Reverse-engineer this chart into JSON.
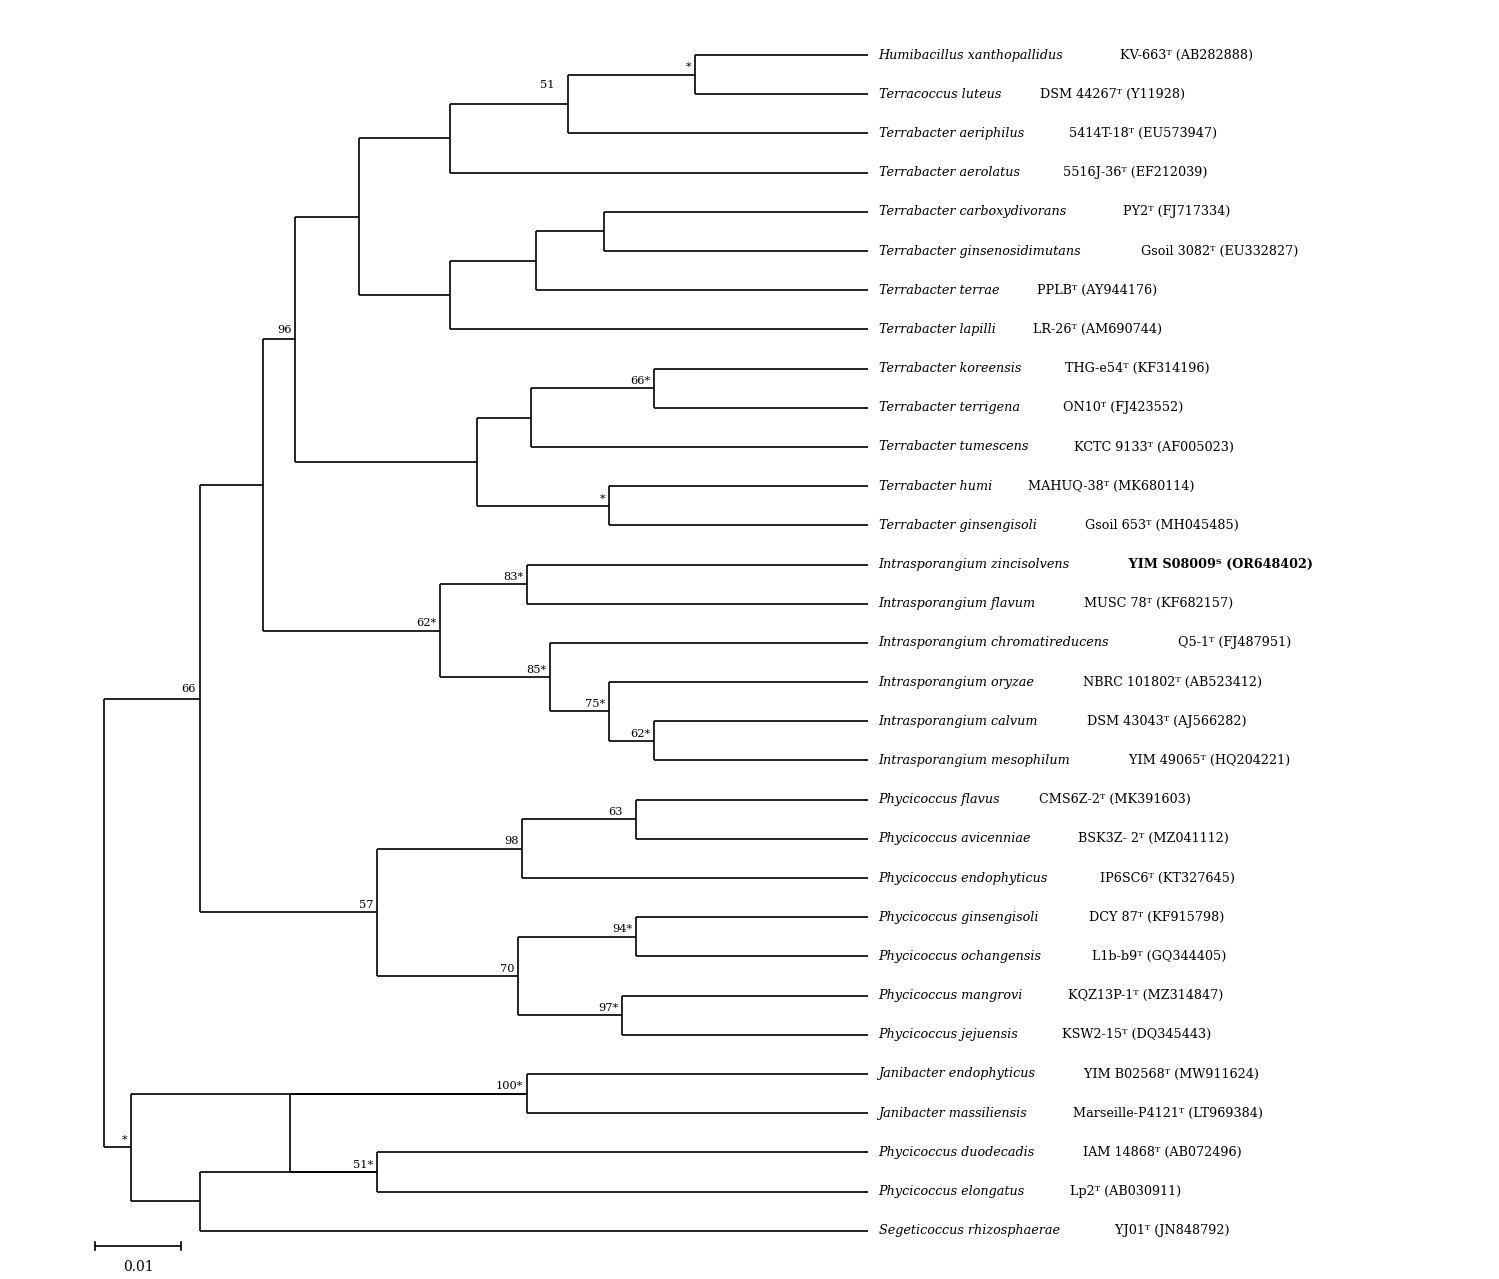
{
  "figsize": [
    14.99,
    12.79
  ],
  "dpi": 100,
  "n_taxa": 31,
  "lw": 1.2,
  "font_size": 9.2,
  "taxa": [
    {
      "italic": "Humibacillus xanthopallidus",
      "normal": " KV-663ᵀ (AB282888)",
      "bold_part": null
    },
    {
      "italic": "Terracoccus luteus",
      "normal": " DSM 44267ᵀ (Y11928)",
      "bold_part": null
    },
    {
      "italic": "Terrabacter aeriphilus",
      "normal": " 5414T-18ᵀ (EU573947)",
      "bold_part": null
    },
    {
      "italic": "Terrabacter aerolatus",
      "normal": " 5516J-36ᵀ (EF212039)",
      "bold_part": null
    },
    {
      "italic": "Terrabacter carboxydivorans",
      "normal": " PY2ᵀ (FJ717334)",
      "bold_part": null
    },
    {
      "italic": "Terrabacter ginsenosidimutans",
      "normal": " Gsoil 3082ᵀ (EU332827)",
      "bold_part": null
    },
    {
      "italic": "Terrabacter terrae",
      "normal": " PPLBᵀ (AY944176)",
      "bold_part": null
    },
    {
      "italic": "Terrabacter lapilli",
      "normal": " LR-26ᵀ (AM690744)",
      "bold_part": null
    },
    {
      "italic": "Terrabacter koreensis",
      "normal": " THG-e54ᵀ (KF314196)",
      "bold_part": null
    },
    {
      "italic": "Terrabacter terrigena",
      "normal": " ON10ᵀ (FJ423552)",
      "bold_part": null
    },
    {
      "italic": "Terrabacter tumescens",
      "normal": " KCTC 9133ᵀ (AF005023)",
      "bold_part": null
    },
    {
      "italic": "Terrabacter humi",
      "normal": " MAHUQ-38ᵀ (MK680114)",
      "bold_part": null
    },
    {
      "italic": "Terrabacter ginsengisoli",
      "normal": " Gsoil 653ᵀ (MH045485)",
      "bold_part": null
    },
    {
      "italic": "Intrasporangium zincisolvens",
      "normal": null,
      "bold_part": " YIM S08009ᵀ (OR648402)"
    },
    {
      "italic": "Intrasporangium flavum",
      "normal": " MUSC 78ᵀ (KF682157)",
      "bold_part": null
    },
    {
      "italic": "Intrasporangium chromatireducens",
      "normal": " Q5-1ᵀ (FJ487951)",
      "bold_part": null
    },
    {
      "italic": "Intrasporangium oryzae",
      "normal": " NBRC 101802ᵀ (AB523412)",
      "bold_part": null
    },
    {
      "italic": "Intrasporangium calvum",
      "normal": " DSM 43043ᵀ (AJ566282)",
      "bold_part": null
    },
    {
      "italic": "Intrasporangium mesophilum",
      "normal": " YIM 49065ᵀ (HQ204221)",
      "bold_part": null
    },
    {
      "italic": "Phycicoccus flavus",
      "normal": " CMS6Z-2ᵀ (MK391603)",
      "bold_part": null
    },
    {
      "italic": "Phycicoccus avicenniae",
      "normal": " BSK3Z- 2ᵀ (MZ041112)",
      "bold_part": null
    },
    {
      "italic": "Phycicoccus endophyticus",
      "normal": " IP6SC6ᵀ (KT327645)",
      "bold_part": null
    },
    {
      "italic": "Phycicoccus ginsengisoli",
      "normal": " DCY 87ᵀ (KF915798)",
      "bold_part": null
    },
    {
      "italic": "Phycicoccus ochangensis",
      "normal": " L1b-b9ᵀ (GQ344405)",
      "bold_part": null
    },
    {
      "italic": "Phycicoccus mangrovi",
      "normal": " KQZ13P-1ᵀ (MZ314847)",
      "bold_part": null
    },
    {
      "italic": "Phycicoccus jejuensis",
      "normal": " KSW2-15ᵀ (DQ345443)",
      "bold_part": null
    },
    {
      "italic": "Janibacter endophyticus",
      "normal": " YIM B02568ᵀ (MW911624)",
      "bold_part": null
    },
    {
      "italic": "Janibacter massiliensis",
      "normal": " Marseille-P4121ᵀ (LT969384)",
      "bold_part": null
    },
    {
      "italic": "Phycicoccus duodecadis",
      "normal": " IAM 14868ᵀ (AB072496)",
      "bold_part": null
    },
    {
      "italic": "Phycicoccus elongatus",
      "normal": " Lp2ᵀ (AB030911)",
      "bold_part": null
    },
    {
      "italic": "Segeticoccus rhizosphaerae",
      "normal": " YJ01ᵀ (JN848792)",
      "bold_part": null
    }
  ]
}
